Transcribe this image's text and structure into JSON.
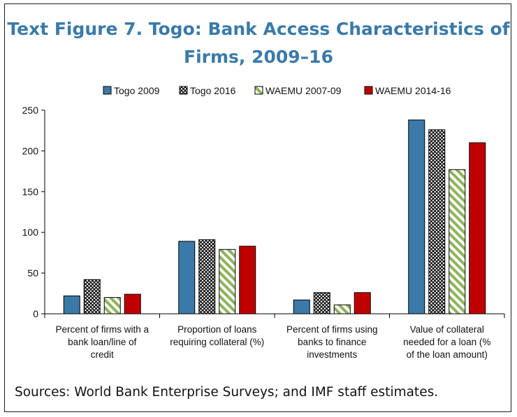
{
  "title": "Text Figure 7. Togo: Bank Access Characteristics of Firms, 2009–16",
  "source": "Sources: World Bank Enterprise Surveys; and IMF staff estimates.",
  "chart_data": {
    "type": "bar",
    "title": "Text Figure 7. Togo: Bank Access Characteristics of Firms, 2009–16",
    "ylim": [
      0,
      250
    ],
    "yticks": [
      0,
      50,
      100,
      150,
      200,
      250
    ],
    "legend_position": "top",
    "categories": [
      [
        "Percent of firms with a",
        "bank loan/line of",
        "credit"
      ],
      [
        "Proportion of loans",
        "requiring collateral (%)"
      ],
      [
        "Percent of firms using",
        "banks to finance",
        "investments"
      ],
      [
        "Value of collateral",
        "needed for a loan (%",
        "of the loan amount)"
      ]
    ],
    "series": [
      {
        "name": "Togo 2009",
        "style": "solid",
        "color": "#3b7aa8",
        "values": [
          22,
          89,
          17,
          238
        ]
      },
      {
        "name": "Togo 2016",
        "style": "crosshatch",
        "color": "#000000",
        "values": [
          42,
          91,
          26,
          226
        ]
      },
      {
        "name": "WAEMU 2007-09",
        "style": "green-stripes",
        "color": "#8db35a",
        "values": [
          20,
          79,
          11,
          177
        ]
      },
      {
        "name": "WAEMU 2014-16",
        "style": "solid",
        "color": "#c00000",
        "values": [
          24,
          83,
          26,
          210
        ]
      }
    ]
  }
}
